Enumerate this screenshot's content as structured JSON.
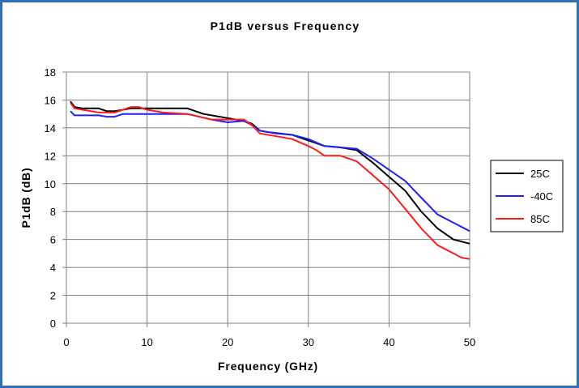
{
  "chart_data": {
    "type": "line",
    "title": "P1dB versus Frequency",
    "xlabel": "Frequency (GHz)",
    "ylabel": "P1dB (dB)",
    "xlim": [
      0,
      50
    ],
    "ylim": [
      0,
      18
    ],
    "xticks": [
      "0",
      "10",
      "20",
      "30",
      "40",
      "50"
    ],
    "yticks": [
      "0",
      "2",
      "4",
      "6",
      "8",
      "10",
      "12",
      "14",
      "16",
      "18"
    ],
    "grid": true,
    "legend_position": "right",
    "series": [
      {
        "name": "25C",
        "color": "#000000",
        "x": [
          0.5,
          1,
          2,
          4,
          5,
          6,
          8,
          10,
          12,
          15,
          17,
          20,
          22,
          23,
          24,
          25,
          28,
          30,
          32,
          34,
          36,
          38,
          40,
          42,
          44,
          46,
          48,
          50
        ],
        "y": [
          15.9,
          15.5,
          15.4,
          15.4,
          15.2,
          15.2,
          15.4,
          15.4,
          15.4,
          15.4,
          15.0,
          14.7,
          14.5,
          14.3,
          13.8,
          13.7,
          13.5,
          13.1,
          12.7,
          12.6,
          12.4,
          11.5,
          10.5,
          9.5,
          8.0,
          6.8,
          6.0,
          5.7
        ]
      },
      {
        "name": "-40C",
        "color": "#1f1fff",
        "x": [
          0.5,
          1,
          2,
          4,
          5,
          6,
          7,
          8,
          10,
          12,
          15,
          18,
          20,
          22,
          23,
          24,
          26,
          28,
          30,
          32,
          34,
          36,
          38,
          40,
          42,
          44,
          46,
          48,
          50
        ],
        "y": [
          15.2,
          14.9,
          14.9,
          14.9,
          14.8,
          14.8,
          15.0,
          15.0,
          15.0,
          15.0,
          15.0,
          14.6,
          14.4,
          14.5,
          14.2,
          13.8,
          13.6,
          13.5,
          13.2,
          12.7,
          12.6,
          12.5,
          11.8,
          11.0,
          10.2,
          9.0,
          7.8,
          7.2,
          6.6
        ]
      },
      {
        "name": "85C",
        "color": "#ff1a1a",
        "x": [
          0.5,
          1,
          2,
          4,
          6,
          8,
          9,
          10,
          12,
          15,
          18,
          20,
          22,
          23,
          24,
          26,
          28,
          30,
          31,
          32,
          34,
          36,
          38,
          40,
          42,
          44,
          46,
          47,
          48,
          49,
          50
        ],
        "y": [
          15.8,
          15.4,
          15.3,
          15.1,
          15.1,
          15.5,
          15.5,
          15.3,
          15.1,
          15.0,
          14.6,
          14.6,
          14.6,
          14.2,
          13.6,
          13.4,
          13.2,
          12.7,
          12.4,
          12.0,
          12.0,
          11.6,
          10.6,
          9.6,
          8.2,
          6.8,
          5.6,
          5.3,
          5.0,
          4.7,
          4.6
        ]
      }
    ]
  }
}
